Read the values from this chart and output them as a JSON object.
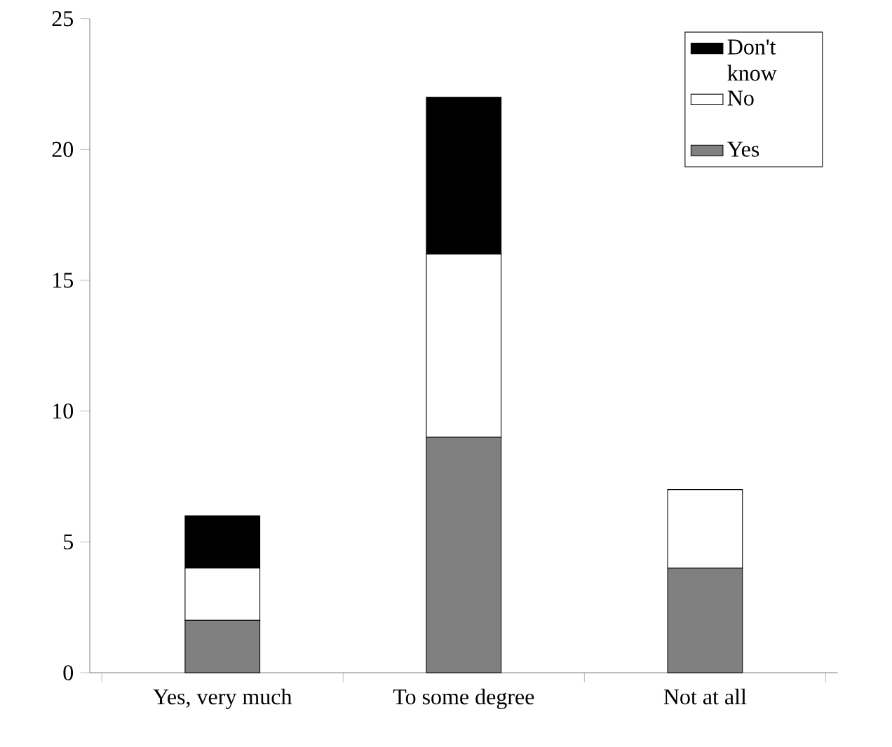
{
  "chart_data": {
    "type": "bar",
    "stacked": true,
    "categories": [
      "Yes, very much",
      "To some degree",
      "Not at all"
    ],
    "series": [
      {
        "name": "Yes",
        "color": "#808080",
        "values": [
          2,
          9,
          4
        ]
      },
      {
        "name": "No",
        "color": "#ffffff",
        "values": [
          2,
          7,
          3
        ]
      },
      {
        "name": "Don't know",
        "color": "#000000",
        "values": [
          2,
          6,
          null
        ]
      }
    ],
    "ylim": [
      0,
      25
    ],
    "yticks": [
      0,
      5,
      10,
      15,
      20,
      25
    ],
    "grid": false,
    "legend": "top right"
  }
}
